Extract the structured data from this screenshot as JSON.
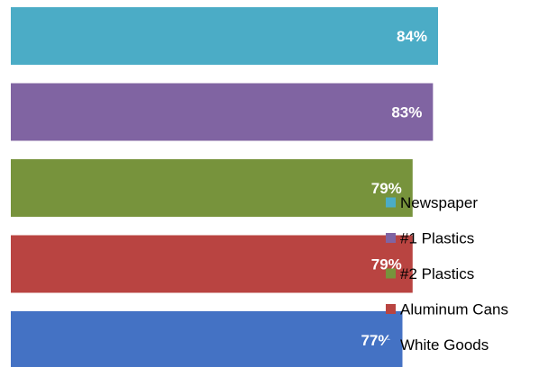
{
  "chart_data": {
    "type": "bar",
    "orientation": "horizontal",
    "categories": [
      "Newspaper",
      "#1 Plastics",
      "#2 Plastics",
      "Aluminum Cans",
      "White Goods"
    ],
    "values": [
      84,
      83,
      79,
      79,
      77
    ],
    "value_labels": [
      "84%",
      "83%",
      "79%",
      "79%",
      "77%"
    ],
    "colors": [
      "#4BACC6",
      "#8064A2",
      "#77933C",
      "#B94441",
      "#4472C4"
    ],
    "value_unit": "%",
    "title": "",
    "xlabel": "",
    "ylabel": "",
    "axes_visible": false,
    "grid": false,
    "legend": {
      "position": "right",
      "entries": [
        "Newspaper",
        "#1 Plastics",
        "#2 Plastics",
        "Aluminum Cans",
        "White Goods"
      ]
    }
  }
}
